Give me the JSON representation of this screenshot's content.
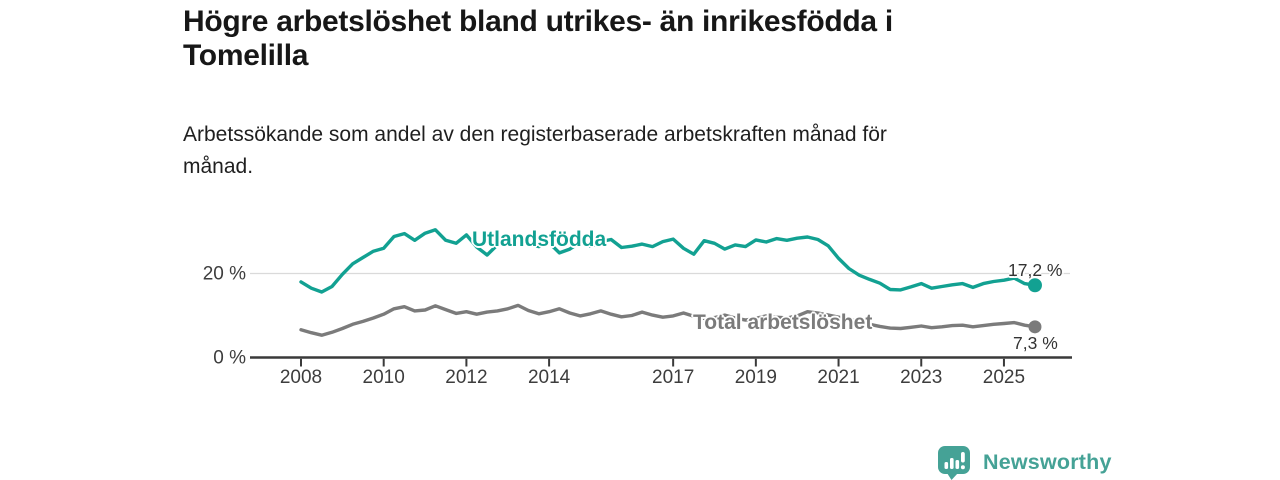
{
  "header": {
    "title_lines": [
      "Högre arbetslöshet bland utrikes- än inrikesfödda i",
      "Tomelilla"
    ],
    "subtitle_lines": [
      "Arbetssökande som andel av den registerbaserade arbetskraften månad för",
      "månad."
    ]
  },
  "chart_data": {
    "type": "line",
    "unit": "%",
    "x_start": 2008,
    "x_step": 0.25,
    "x_ticks": [
      {
        "year": 2008,
        "label": "2008"
      },
      {
        "year": 2010,
        "label": "2010"
      },
      {
        "year": 2012,
        "label": "2012"
      },
      {
        "year": 2014,
        "label": "2014"
      },
      {
        "year": 2017,
        "label": "2017"
      },
      {
        "year": 2019,
        "label": "2019"
      },
      {
        "year": 2021,
        "label": "2021"
      },
      {
        "year": 2023,
        "label": "2023"
      },
      {
        "year": 2025,
        "label": "2025"
      }
    ],
    "y_ticks": [
      {
        "value": 0,
        "label": "0 %"
      },
      {
        "value": 20,
        "label": "20 %"
      }
    ],
    "ylim": [
      0,
      32
    ],
    "grid_values": [
      20
    ],
    "grid_on": true,
    "legend_position": "inline-labels",
    "series": [
      {
        "name": "Utlandsfödda",
        "color": "#12a192",
        "end_value": 17.2,
        "end_label": "17,2 %",
        "values": [
          18.0,
          16.5,
          15.6,
          16.9,
          19.8,
          22.3,
          23.8,
          25.3,
          26.0,
          28.8,
          29.5,
          27.9,
          29.6,
          30.4,
          27.9,
          27.2,
          29.2,
          26.3,
          24.4,
          26.8,
          28.4,
          29.1,
          27.3,
          26.4,
          27.3,
          24.9,
          25.8,
          27.4,
          26.5,
          27.6,
          28.1,
          26.2,
          26.5,
          27.0,
          26.4,
          27.6,
          28.2,
          26.0,
          24.6,
          27.8,
          27.2,
          25.8,
          26.8,
          26.4,
          28.0,
          27.5,
          28.3,
          27.9,
          28.4,
          28.7,
          28.1,
          26.6,
          23.6,
          21.2,
          19.6,
          18.6,
          17.7,
          16.2,
          16.1,
          16.8,
          17.6,
          16.5,
          16.9,
          17.3,
          17.6,
          16.7,
          17.6,
          18.1,
          18.4,
          18.9,
          17.6,
          17.2
        ]
      },
      {
        "name": "Total arbetslöshet",
        "color": "#7b7b7b",
        "end_value": 7.3,
        "end_label": "7,3 %",
        "values": [
          6.6,
          5.9,
          5.3,
          6.0,
          6.9,
          7.9,
          8.6,
          9.4,
          10.3,
          11.6,
          12.1,
          11.1,
          11.3,
          12.3,
          11.4,
          10.5,
          10.9,
          10.3,
          10.8,
          11.1,
          11.6,
          12.4,
          11.2,
          10.4,
          10.9,
          11.6,
          10.6,
          9.9,
          10.4,
          11.1,
          10.3,
          9.7,
          10.0,
          10.8,
          10.1,
          9.6,
          9.9,
          10.6,
          9.8,
          9.3,
          9.5,
          10.1,
          9.4,
          8.9,
          9.3,
          9.9,
          9.6,
          9.4,
          9.9,
          10.9,
          10.6,
          10.1,
          9.6,
          9.1,
          8.5,
          7.9,
          7.4,
          7.0,
          6.9,
          7.2,
          7.5,
          7.1,
          7.3,
          7.6,
          7.7,
          7.3,
          7.6,
          7.9,
          8.1,
          8.3,
          7.7,
          7.3
        ]
      }
    ],
    "style": {
      "grid_color": "#dadada",
      "axis_color": "#3a3a3a",
      "tick_label_color": "#3d3d3d"
    }
  },
  "footer": {
    "brand": "Newsworthy",
    "brand_color": "#45a296",
    "logo_icon": "bar-chart-speech-bubble-icon"
  }
}
